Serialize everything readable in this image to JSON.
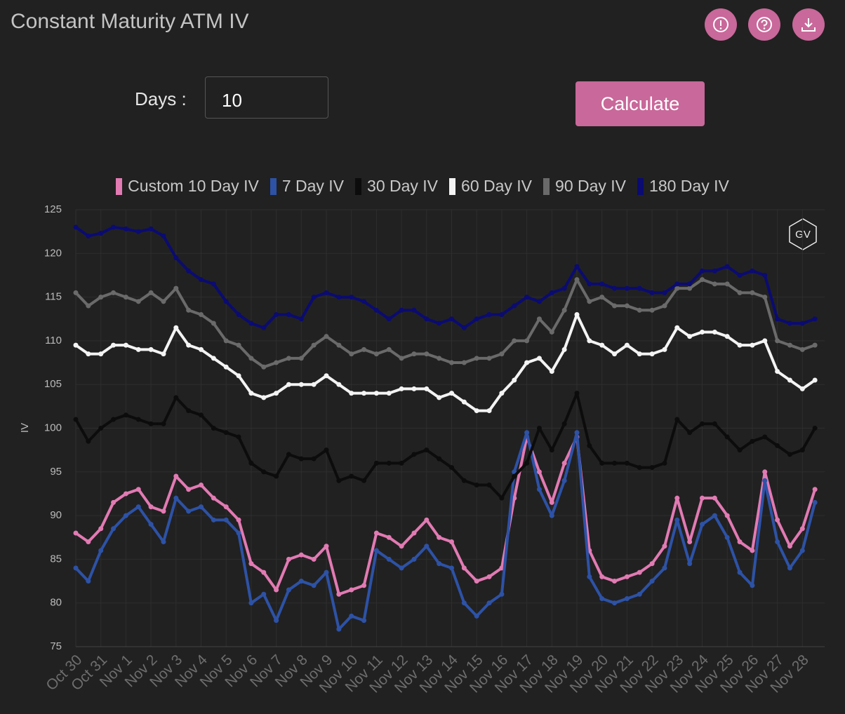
{
  "header": {
    "title": "Constant Maturity ATM IV"
  },
  "form": {
    "label": "Days",
    "colon": ":",
    "input": "10",
    "button": "Calculate"
  },
  "chart_data": {
    "type": "line",
    "y_label": "IV",
    "watermark": "GV",
    "grid": true,
    "ylim": [
      75,
      125
    ],
    "yticks": [
      75,
      80,
      85,
      90,
      95,
      100,
      105,
      110,
      115,
      120,
      125
    ],
    "categories": [
      "Oct 30",
      null,
      "Oct 31",
      null,
      "Nov 1",
      null,
      "Nov 2",
      null,
      "Nov 3",
      null,
      "Nov 4",
      null,
      "Nov 5",
      null,
      "Nov 6",
      null,
      "Nov 7",
      null,
      "Nov 8",
      null,
      "Nov 9",
      null,
      "Nov 10",
      null,
      "Nov 11",
      null,
      "Nov 12",
      null,
      "Nov 13",
      null,
      "Nov 14",
      null,
      "Nov 15",
      null,
      "Nov 16",
      null,
      "Nov 17",
      null,
      "Nov 18",
      null,
      "Nov 19",
      null,
      "Nov 20",
      null,
      "Nov 21",
      null,
      "Nov 22",
      null,
      "Nov 23",
      null,
      "Nov 24",
      null,
      "Nov 25",
      null,
      "Nov 26",
      null,
      "Nov 27",
      null,
      "Nov 28",
      null
    ],
    "series": [
      {
        "name": "Custom 10 Day IV",
        "color": "#e27ab3",
        "values": [
          88,
          87,
          88.5,
          91.5,
          92.5,
          93,
          91,
          90.5,
          94.5,
          93,
          93.5,
          92,
          91,
          89.5,
          84.5,
          83.5,
          81.5,
          85,
          85.5,
          85,
          86.5,
          81,
          81.5,
          82,
          88,
          87.5,
          86.5,
          88,
          89.5,
          87.5,
          87,
          84,
          82.5,
          83,
          84,
          92,
          99,
          95,
          91.5,
          96,
          99,
          86,
          83,
          82.5,
          83,
          83.5,
          84.5,
          86.5,
          92,
          87,
          92,
          92,
          90,
          87,
          86,
          95,
          89.5,
          86.5,
          88.5,
          93
        ]
      },
      {
        "name": "7 Day IV",
        "color": "#2d52a6",
        "values": [
          84,
          82.5,
          86,
          88.5,
          90,
          91,
          89,
          87,
          92,
          90.5,
          91,
          89.5,
          89.5,
          88,
          80,
          81,
          78,
          81.5,
          82.5,
          82,
          83.5,
          77,
          78.5,
          78,
          86,
          85,
          84,
          85,
          86.5,
          84.5,
          84,
          80,
          78.5,
          80,
          81,
          95,
          99.5,
          93,
          90,
          94,
          99.5,
          83,
          80.5,
          80,
          80.5,
          81,
          82.5,
          84,
          89.5,
          84.5,
          89,
          90,
          87.5,
          83.5,
          82,
          94,
          87,
          84,
          86,
          91.5
        ]
      },
      {
        "name": "30 Day IV",
        "color": "#0c0c0c",
        "values": [
          101,
          98.5,
          100,
          101,
          101.5,
          101,
          100.5,
          100.5,
          103.5,
          102,
          101.5,
          100,
          99.5,
          99,
          96,
          95,
          94.5,
          97,
          96.5,
          96.5,
          97.5,
          94,
          94.5,
          94,
          96,
          96,
          96,
          97,
          97.5,
          96.5,
          95.5,
          94,
          93.5,
          93.5,
          92,
          94.5,
          96,
          100,
          97.5,
          100.5,
          104,
          98,
          96,
          96,
          96,
          95.5,
          95.5,
          96,
          101,
          99.5,
          100.5,
          100.5,
          99,
          97.5,
          98.5,
          99,
          98,
          97,
          97.5,
          100
        ]
      },
      {
        "name": "60 Day IV",
        "color": "#f4f4f4",
        "values": [
          109.5,
          108.5,
          108.5,
          109.5,
          109.5,
          109,
          109,
          108.5,
          111.5,
          109.5,
          109,
          108,
          107,
          106,
          104,
          103.5,
          104,
          105,
          105,
          105,
          106,
          105,
          104,
          104,
          104,
          104,
          104.5,
          104.5,
          104.5,
          103.5,
          104,
          103,
          102,
          102,
          104,
          105.5,
          107.5,
          108,
          106.5,
          109,
          113,
          110,
          109.5,
          108.5,
          109.5,
          108.5,
          108.5,
          109,
          111.5,
          110.5,
          111,
          111,
          110.5,
          109.5,
          109.5,
          110,
          106.5,
          105.5,
          104.5,
          105.5
        ]
      },
      {
        "name": "90 Day IV",
        "color": "#6a6a6a",
        "values": [
          115.5,
          114,
          115,
          115.5,
          115,
          114.5,
          115.5,
          114.5,
          116,
          113.5,
          113,
          112,
          110,
          109.5,
          108,
          107,
          107.5,
          108,
          108,
          109.5,
          110.5,
          109.5,
          108.5,
          109,
          108.5,
          109,
          108,
          108.5,
          108.5,
          108,
          107.5,
          107.5,
          108,
          108,
          108.5,
          110,
          110,
          112.5,
          111,
          113.5,
          117,
          114.5,
          115,
          114,
          114,
          113.5,
          113.5,
          114,
          116,
          116,
          117,
          116.5,
          116.5,
          115.5,
          115.5,
          115,
          110,
          109.5,
          109,
          109.5
        ]
      },
      {
        "name": "180 Day IV",
        "color": "#0b0b72",
        "values": [
          123,
          122,
          122.3,
          123,
          122.8,
          122.5,
          122.8,
          122,
          119.5,
          118,
          117,
          116.5,
          114.5,
          113,
          112,
          111.5,
          113,
          113,
          112.5,
          115,
          115.5,
          115,
          115,
          114.5,
          113.5,
          112.5,
          113.5,
          113.5,
          112.5,
          112,
          112.5,
          111.5,
          112.5,
          113,
          113,
          114,
          115,
          114.5,
          115.5,
          116,
          118.5,
          116.5,
          116.5,
          116,
          116,
          116,
          115.5,
          115.5,
          116.5,
          116.5,
          118,
          118,
          118.5,
          117.5,
          118,
          117.5,
          112.5,
          112,
          112,
          112.5
        ]
      }
    ]
  }
}
